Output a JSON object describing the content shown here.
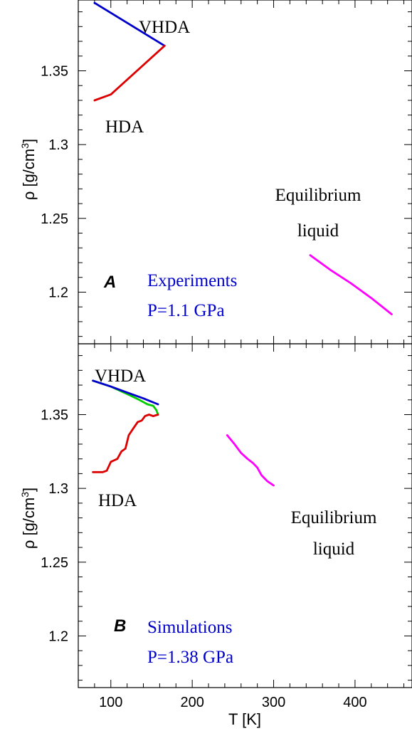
{
  "chart_data": [
    {
      "type": "line",
      "panel": "A",
      "xlim": [
        60,
        470
      ],
      "ylim": [
        1.165,
        1.398
      ],
      "x_ticks": [
        100,
        200,
        300,
        400
      ],
      "y_ticks": [
        1.2,
        1.25,
        1.3,
        1.35
      ],
      "ylabel": "ρ [g/cm",
      "ylabel_sup": "3",
      "ylabel_close": "]",
      "xlabel": "",
      "series": [
        {
          "color": "#0000cc",
          "points": [
            [
              80,
              1.396
            ],
            [
              166,
              1.367
            ]
          ]
        },
        {
          "color": "#dd0000",
          "points": [
            [
              80,
              1.33
            ],
            [
              100,
              1.334
            ],
            [
              166,
              1.367
            ]
          ]
        },
        {
          "color": "#ff00ff",
          "points": [
            [
              345,
              1.225
            ],
            [
              370,
              1.215
            ],
            [
              395,
              1.206
            ],
            [
              420,
              1.196
            ],
            [
              445,
              1.185
            ]
          ]
        }
      ],
      "annotations": {
        "vhda": "VHDA",
        "hda": "HDA",
        "eq_line1": "Equilibrium",
        "eq_line2": "liquid",
        "panel_letter": "A",
        "method": "Experiments",
        "pressure": "P=1.1 GPa"
      },
      "text_colors": {
        "method": "#0000cc",
        "pressure": "#0000cc",
        "labels": "#000000"
      }
    },
    {
      "type": "line",
      "panel": "B",
      "xlim": [
        60,
        470
      ],
      "ylim": [
        1.165,
        1.398
      ],
      "x_ticks": [
        100,
        200,
        300,
        400
      ],
      "y_ticks": [
        1.2,
        1.25,
        1.3,
        1.35
      ],
      "ylabel": "ρ [g/cm",
      "ylabel_sup": "3",
      "ylabel_close": "]",
      "xlabel": "T [K]",
      "series": [
        {
          "color": "#00cc00",
          "points": [
            [
              78,
              1.373
            ],
            [
              100,
              1.369
            ],
            [
              120,
              1.364
            ],
            [
              135,
              1.36
            ],
            [
              145,
              1.357
            ],
            [
              152,
              1.356
            ],
            [
              156,
              1.353
            ],
            [
              158,
              1.35
            ]
          ]
        },
        {
          "color": "#dd0000",
          "points": [
            [
              78,
              1.311
            ],
            [
              90,
              1.311
            ],
            [
              95,
              1.312
            ],
            [
              100,
              1.318
            ],
            [
              108,
              1.32
            ],
            [
              113,
              1.325
            ],
            [
              118,
              1.327
            ],
            [
              122,
              1.336
            ],
            [
              128,
              1.341
            ],
            [
              133,
              1.345
            ],
            [
              138,
              1.346
            ],
            [
              142,
              1.349
            ],
            [
              147,
              1.35
            ],
            [
              152,
              1.349
            ],
            [
              158,
              1.35
            ]
          ]
        },
        {
          "color": "#0000cc",
          "points": [
            [
              78,
              1.373
            ],
            [
              100,
              1.369
            ],
            [
              120,
              1.365
            ],
            [
              140,
              1.361
            ],
            [
              158,
              1.357
            ]
          ]
        },
        {
          "color": "#ff00ff",
          "points": [
            [
              243,
              1.336
            ],
            [
              252,
              1.33
            ],
            [
              260,
              1.324
            ],
            [
              268,
              1.32
            ],
            [
              275,
              1.317
            ],
            [
              280,
              1.314
            ],
            [
              285,
              1.309
            ],
            [
              292,
              1.305
            ],
            [
              300,
              1.302
            ]
          ]
        }
      ],
      "annotations": {
        "vhda": "VHDA",
        "hda": "HDA",
        "eq_line1": "Equilibrium",
        "eq_line2": "liquid",
        "panel_letter": "B",
        "method": "Simulations",
        "pressure": "P=1.38 GPa"
      },
      "text_colors": {
        "method": "#0000cc",
        "pressure": "#0000cc",
        "labels": "#000000"
      }
    }
  ]
}
